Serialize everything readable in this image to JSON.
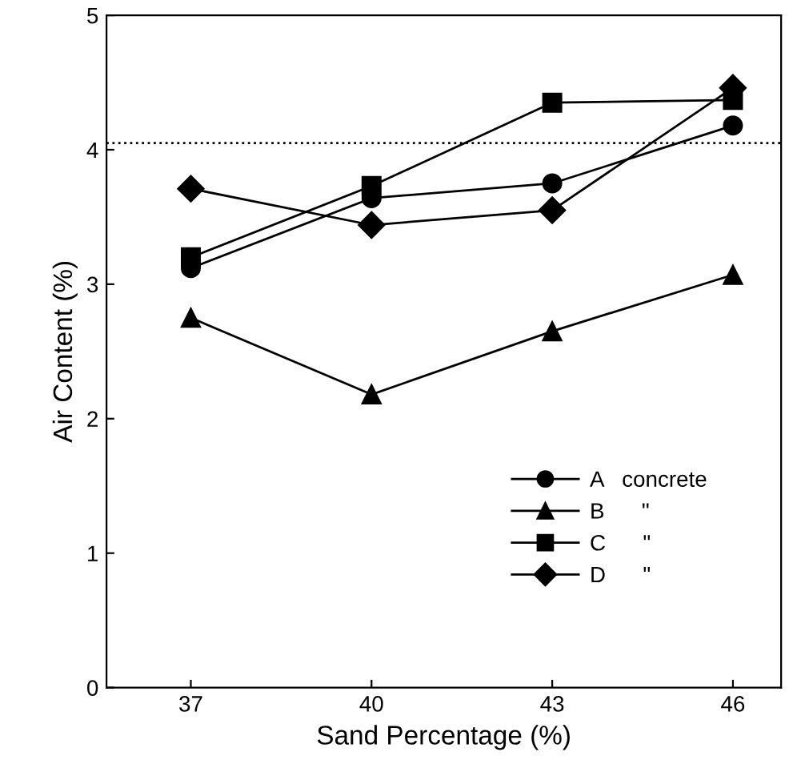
{
  "chart_data": {
    "type": "line",
    "xlabel": "Sand Percentage (%)",
    "ylabel": "Air Content (%)",
    "x": [
      37,
      40,
      43,
      46
    ],
    "xlim": [
      35.6,
      46.8
    ],
    "xticks": [
      37,
      40,
      43,
      46
    ],
    "ylim": [
      0,
      5
    ],
    "yticks": [
      0,
      1,
      2,
      3,
      4,
      5
    ],
    "grid": false,
    "legend": "bottom right",
    "series": [
      {
        "name": "A   concrete",
        "color": "#000000",
        "marker": "circle",
        "values": [
          3.12,
          3.64,
          3.75,
          4.18
        ]
      },
      {
        "name": "B      \"",
        "color": "#000000",
        "marker": "triangle",
        "values": [
          2.75,
          2.18,
          2.65,
          3.07
        ]
      },
      {
        "name": "C      \"",
        "color": "#000000",
        "marker": "square",
        "values": [
          3.2,
          3.73,
          4.35,
          4.37
        ]
      },
      {
        "name": "D      \"",
        "color": "#000000",
        "marker": "diamond",
        "values": [
          3.71,
          3.44,
          3.55,
          4.46
        ]
      }
    ],
    "ref_lines": [
      {
        "axis": "y",
        "value": 4.05,
        "line_style": "dotted",
        "color": "#000000"
      }
    ]
  }
}
